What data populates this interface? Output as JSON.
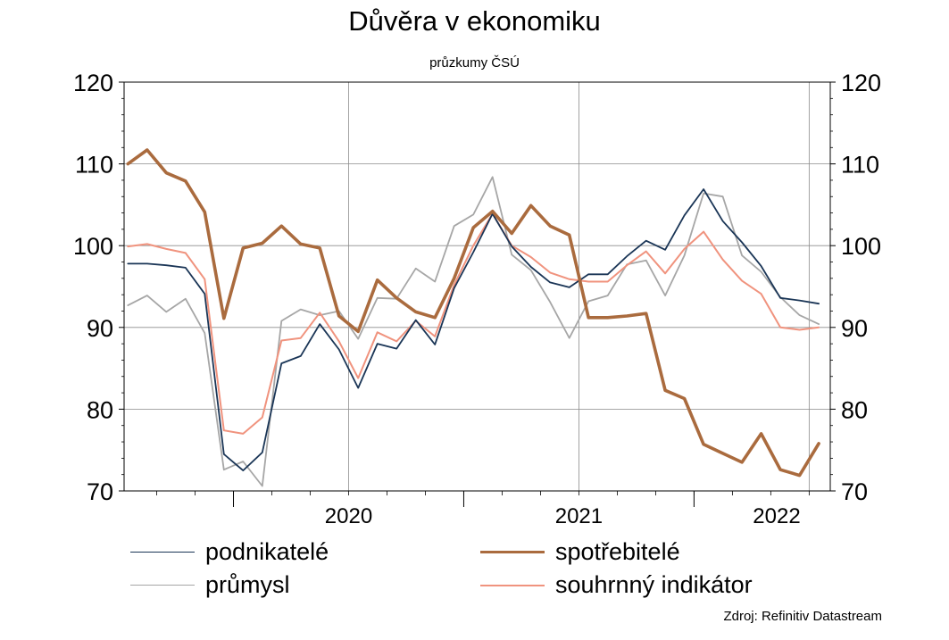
{
  "title": "Důvěra v ekonomiku",
  "subtitle": "průzkumy ČSÚ",
  "source": "Zdroj: Refinitiv Datastream",
  "colors": {
    "podnikatele": "#1a3556",
    "prumysl": "#a6a6a6",
    "spotrebitele": "#aa6b3e",
    "souhrnny": "#f0937e",
    "grid": "#8c8c8c",
    "axis": "#000000"
  },
  "legend": [
    {
      "key": "podnikatele",
      "label": "podnikatelé"
    },
    {
      "key": "spotrebitele",
      "label": "spotřebitelé"
    },
    {
      "key": "prumysl",
      "label": "průmysl"
    },
    {
      "key": "souhrnny",
      "label": "souhrnný indikátor"
    }
  ],
  "chart_data": {
    "type": "line",
    "x_start": "2019-07",
    "x_unit": "month",
    "x_tick_labels": [
      "2020",
      "2021",
      "2022"
    ],
    "ylim": [
      70,
      120
    ],
    "y_ticks": [
      70,
      80,
      90,
      100,
      110,
      120
    ],
    "y_axes": "left-and-right",
    "grid": true,
    "legend_position": "bottom",
    "series": [
      {
        "key": "podnikatele",
        "name": "podnikatelé",
        "values": [
          97.8,
          97.8,
          97.6,
          97.3,
          94.1,
          74.5,
          72.5,
          74.7,
          85.6,
          86.5,
          90.4,
          87.3,
          82.6,
          88.0,
          87.4,
          90.9,
          87.9,
          94.8,
          99.2,
          103.9,
          99.9,
          97.4,
          95.5,
          94.9,
          96.5,
          96.5,
          98.7,
          100.6,
          99.5,
          103.7,
          106.9,
          103.0,
          100.4,
          97.5,
          93.6,
          93.3,
          92.9
        ]
      },
      {
        "key": "prumysl",
        "name": "průmysl",
        "values": [
          92.7,
          93.9,
          91.9,
          93.5,
          89.3,
          72.6,
          73.6,
          70.6,
          90.8,
          92.2,
          91.5,
          92.0,
          88.6,
          93.6,
          93.5,
          97.2,
          95.6,
          102.4,
          103.8,
          108.4,
          98.9,
          97.0,
          93.1,
          88.7,
          93.2,
          93.9,
          97.7,
          98.2,
          93.9,
          98.8,
          106.4,
          106.0,
          98.8,
          96.8,
          93.7,
          91.5,
          90.4
        ]
      },
      {
        "key": "spotrebitele",
        "name": "spotřebitelé",
        "values": [
          110.0,
          111.7,
          108.9,
          107.9,
          104.1,
          91.1,
          99.7,
          100.3,
          102.4,
          100.2,
          99.7,
          91.4,
          89.5,
          95.8,
          93.6,
          91.9,
          91.2,
          96.0,
          102.2,
          104.2,
          101.5,
          104.9,
          102.4,
          101.3,
          91.2,
          91.2,
          91.4,
          91.7,
          82.3,
          81.3,
          75.7,
          74.6,
          73.5,
          77.0,
          72.6,
          71.9,
          75.8
        ]
      },
      {
        "key": "souhrnny",
        "name": "souhrnný indikátor",
        "values": [
          99.9,
          100.2,
          99.6,
          99.1,
          95.9,
          77.4,
          77.0,
          79.0,
          88.4,
          88.7,
          91.8,
          88.3,
          83.8,
          89.4,
          88.3,
          90.8,
          88.9,
          95.2,
          100.0,
          103.9,
          100.0,
          98.6,
          96.7,
          95.9,
          95.6,
          95.6,
          97.6,
          99.3,
          96.6,
          99.6,
          101.7,
          98.3,
          95.7,
          94.1,
          90.0,
          89.7,
          90.0
        ]
      }
    ]
  }
}
